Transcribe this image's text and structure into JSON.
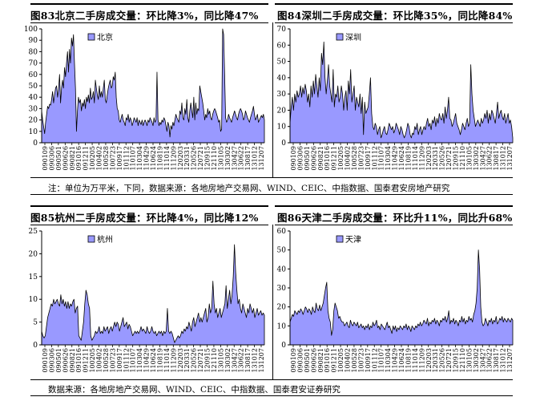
{
  "charts": [
    {
      "title": "图83北京二手房成交量：环比降3%，同比降47%"
    },
    {
      "title": "图84深圳二手房成交量：环比降35%，同比降84%"
    },
    {
      "title": "图85杭州二手房成交量：环比降4%，同比降12%"
    },
    {
      "title": "图86天津二手房成交量：环比升11%，同比升68%"
    }
  ],
  "notes": {
    "top": "注：单位为万平米，下同，数据来源：各地房地产交易网、WIND、CEIC、中指数据、国泰君安房地产研究",
    "bottom": "数据来源：各地房地产交易网、WIND、CEIC、中指数据、国泰君安证券研究"
  },
  "chart_data": [
    {
      "type": "area",
      "series": [
        {
          "name": "北京",
          "values": [
            28,
            20,
            14,
            8,
            18,
            25,
            32,
            30,
            34,
            33,
            38,
            45,
            35,
            42,
            48,
            50,
            40,
            47,
            60,
            35,
            48,
            55,
            48,
            66,
            58,
            70,
            80,
            62,
            82,
            70,
            92,
            85,
            95,
            70,
            48,
            10,
            28,
            40,
            35,
            38,
            28,
            35,
            32,
            38,
            30,
            40,
            36,
            42,
            35,
            48,
            38,
            40,
            45,
            35,
            55,
            48,
            42,
            38,
            50,
            40,
            45,
            40,
            48,
            55,
            38,
            35,
            42,
            48,
            52,
            55,
            48,
            50,
            58,
            55,
            62,
            40,
            30,
            28,
            20,
            18,
            22,
            25,
            20,
            18,
            15,
            22,
            20,
            25,
            18,
            22,
            20,
            15,
            18,
            22,
            20,
            18,
            22,
            15,
            20,
            18,
            16,
            20,
            15,
            18,
            20,
            18,
            15,
            20,
            18,
            22,
            20,
            18,
            15,
            22,
            18,
            20,
            62,
            20,
            15,
            18,
            16,
            20,
            18,
            22,
            20,
            15,
            10,
            18,
            15,
            5,
            15,
            12,
            18,
            15,
            20,
            25,
            22,
            20,
            18,
            28,
            25,
            35,
            22,
            20,
            30,
            25,
            38,
            22,
            18,
            28,
            35,
            28,
            22,
            40,
            20,
            35,
            25,
            30,
            28,
            50,
            45,
            40,
            35,
            28,
            20,
            25,
            22,
            30,
            25,
            28,
            22,
            20,
            25,
            28,
            30,
            28,
            25,
            22,
            18,
            20,
            10,
            12,
            100,
            95,
            60,
            22,
            18,
            20,
            25,
            22,
            20,
            18,
            22,
            25,
            28,
            25,
            22,
            20,
            25,
            28,
            30,
            28,
            25,
            20,
            22,
            28,
            25,
            22,
            20,
            18,
            22,
            25,
            28,
            32,
            25,
            20,
            22,
            25,
            18,
            20,
            22,
            24,
            22,
            25,
            20
          ]
        }
      ],
      "x_ticks": [
        "090109",
        "090306",
        "090501",
        "090626",
        "090821",
        "091016",
        "091211",
        "100205",
        "100402",
        "100528",
        "100723",
        "100917",
        "101112",
        "110107",
        "110304",
        "110429",
        "110624",
        "110819",
        "111014",
        "111209",
        "120203",
        "120331",
        "120526",
        "120721",
        "120915",
        "121110",
        "130105",
        "130302",
        "130427",
        "130622",
        "130817",
        "131012",
        "131207"
      ],
      "ylim": [
        0,
        100
      ],
      "y_ticks": [
        0,
        10,
        20,
        30,
        40,
        50,
        60,
        70,
        80,
        90,
        100
      ],
      "legend": "北京",
      "color": "#9999ff"
    },
    {
      "type": "area",
      "series": [
        {
          "name": "深圳",
          "values": [
            12,
            22,
            28,
            20,
            30,
            25,
            32,
            28,
            30,
            35,
            28,
            34,
            30,
            36,
            32,
            25,
            30,
            22,
            35,
            28,
            38,
            30,
            42,
            35,
            28,
            40,
            32,
            55,
            48,
            62,
            40,
            30,
            38,
            48,
            35,
            30,
            25,
            45,
            22,
            30,
            28,
            35,
            25,
            28,
            35,
            30,
            20,
            28,
            32,
            20,
            38,
            30,
            45,
            25,
            30,
            35,
            20,
            28,
            25,
            22,
            30,
            18,
            28,
            5,
            25,
            18,
            20,
            22,
            30,
            40,
            18,
            10,
            8,
            12,
            10,
            5,
            8,
            10,
            3,
            5,
            8,
            10,
            6,
            5,
            8,
            12,
            10,
            8,
            10,
            6,
            8,
            12,
            10,
            8,
            5,
            10,
            8,
            5,
            3,
            5,
            8,
            12,
            10,
            5,
            3,
            6,
            5,
            10,
            8,
            12,
            5,
            8,
            10,
            5,
            8,
            10,
            8,
            12,
            15,
            10,
            12,
            8,
            14,
            12,
            16,
            10,
            15,
            12,
            18,
            15,
            14,
            18,
            12,
            22,
            15,
            20,
            28,
            15,
            14,
            10,
            12,
            15,
            18,
            12,
            10,
            8,
            5,
            8,
            12,
            10,
            8,
            12,
            15,
            10,
            12,
            48,
            30,
            20,
            15,
            10,
            12,
            14,
            12,
            10,
            15,
            12,
            14,
            18,
            15,
            20,
            12,
            18,
            14,
            20,
            18,
            15,
            12,
            18,
            25,
            15,
            18,
            20,
            16,
            14,
            18,
            12,
            15,
            18,
            12,
            14,
            10,
            3
          ]
        }
      ],
      "x_ticks": [
        "090109",
        "090306",
        "090501",
        "090626",
        "090821",
        "091016",
        "091211",
        "100205",
        "100402",
        "100528",
        "100723",
        "100917",
        "101112",
        "110107",
        "110304",
        "110429",
        "110624",
        "110819",
        "111014",
        "111209",
        "120203",
        "120331",
        "120526",
        "120721",
        "120915",
        "121110",
        "130105",
        "130302",
        "130427",
        "130622",
        "130817",
        "131012",
        "131207"
      ],
      "ylim": [
        0,
        70
      ],
      "y_ticks": [
        0,
        10,
        20,
        30,
        40,
        50,
        60,
        70
      ],
      "legend": "深圳",
      "color": "#9999ff"
    },
    {
      "type": "area",
      "series": [
        {
          "name": "杭州",
          "values": [
            3,
            2,
            1.5,
            2,
            4,
            6,
            7,
            8,
            9,
            8.5,
            10,
            9,
            9.5,
            10,
            9,
            8.5,
            11,
            9,
            10,
            8.5,
            9.5,
            8,
            9.5,
            8,
            9,
            8.5,
            9.5,
            10,
            7,
            8,
            8.5,
            2,
            1.5,
            1,
            3,
            5,
            9,
            12,
            11,
            9,
            8,
            2,
            1,
            1.5,
            2,
            3,
            2.5,
            3,
            4,
            2.5,
            3,
            2.5,
            4,
            3,
            3.5,
            4,
            2.5,
            3.5,
            4,
            3,
            4,
            5,
            4,
            5,
            4.5,
            3,
            4,
            5,
            6,
            4,
            4.5,
            5,
            3.5,
            4.5,
            4,
            3,
            2,
            2.5,
            3,
            2.5,
            3,
            2.5,
            3,
            4,
            3,
            3.5,
            3,
            2.5,
            4,
            3,
            2.5,
            3,
            4,
            3,
            2.5,
            3,
            2,
            2.5,
            3,
            2.5,
            3,
            2,
            3,
            2.5,
            3,
            8,
            3,
            2.5,
            3,
            2.5,
            1.5,
            0.5,
            1,
            1.5,
            2,
            1.5,
            2,
            3,
            2.5,
            3.5,
            3,
            4,
            3.5,
            5,
            4,
            3,
            5,
            6,
            4,
            5,
            6,
            7,
            5,
            6,
            5,
            6,
            7,
            8,
            5,
            6,
            9,
            7,
            8,
            14,
            9,
            7,
            8,
            6,
            7,
            8,
            6,
            7,
            8,
            9,
            13,
            8,
            10,
            12,
            9,
            11,
            15,
            22,
            16,
            12,
            9,
            10,
            8,
            7,
            9,
            8,
            7,
            6,
            8,
            7,
            9,
            8,
            7,
            8,
            6,
            7,
            8,
            6.5,
            7,
            7.5,
            6.5,
            7,
            6.5
          ]
        }
      ],
      "x_ticks": [
        "090109",
        "090306",
        "090501",
        "090626",
        "090821",
        "091016",
        "091211",
        "100205",
        "100402",
        "100528",
        "100723",
        "100917",
        "101112",
        "110107",
        "110304",
        "110429",
        "110624",
        "110819",
        "111014",
        "111209",
        "120203",
        "120331",
        "120526",
        "120721",
        "120915",
        "121110",
        "130105",
        "130302",
        "130427",
        "130622",
        "130817",
        "131012",
        "131207"
      ],
      "ylim": [
        0,
        25
      ],
      "y_ticks": [
        0,
        5,
        10,
        15,
        20,
        25
      ],
      "legend": "杭州",
      "color": "#9999ff"
    },
    {
      "type": "area",
      "series": [
        {
          "name": "天津",
          "values": [
            12,
            14,
            16,
            15,
            18,
            17,
            16,
            18,
            17,
            19,
            18,
            16,
            18,
            20,
            19,
            17,
            19,
            18,
            16,
            20,
            18,
            17,
            22,
            19,
            18,
            21,
            18,
            20,
            22,
            26,
            30,
            33,
            18,
            14,
            12,
            5,
            8,
            18,
            22,
            20,
            18,
            14,
            15,
            13,
            12,
            12,
            10,
            11,
            12,
            10,
            9,
            13,
            11,
            10,
            12,
            11,
            10,
            12,
            9,
            10,
            11,
            9,
            10,
            8,
            10,
            9,
            11,
            8,
            10,
            9,
            12,
            10,
            11,
            13,
            9,
            10,
            8,
            11,
            10,
            9,
            8,
            10,
            12,
            9,
            10,
            8,
            6,
            10,
            8,
            10,
            7,
            9,
            8,
            10,
            9,
            8,
            10,
            9,
            11,
            8,
            10,
            9,
            7,
            10,
            9,
            8,
            10,
            9,
            11,
            10,
            12,
            10,
            11,
            13,
            12,
            11,
            14,
            10,
            12,
            11,
            13,
            12,
            14,
            11,
            13,
            12,
            10,
            13,
            12,
            14,
            13,
            15,
            12,
            14,
            18,
            11,
            13,
            12,
            14,
            11,
            13,
            12,
            10,
            13,
            12,
            15,
            12,
            14,
            11,
            13,
            12,
            15,
            13,
            14,
            12,
            16,
            18,
            22,
            30,
            50,
            40,
            20,
            12,
            10,
            11,
            14,
            12,
            10,
            13,
            12,
            14,
            11,
            13,
            12,
            15,
            11,
            12,
            14,
            13,
            15,
            12,
            14,
            13,
            12,
            14,
            13,
            12,
            14,
            13
          ]
        }
      ],
      "x_ticks": [
        "090109",
        "090306",
        "090501",
        "090626",
        "090821",
        "091016",
        "091211",
        "100205",
        "100402",
        "100528",
        "100723",
        "100917",
        "101112",
        "110107",
        "110304",
        "110429",
        "110624",
        "110819",
        "111014",
        "111209",
        "120203",
        "120331",
        "120526",
        "120721",
        "120915",
        "121110",
        "130105",
        "130302",
        "130427",
        "130622",
        "130817",
        "131012",
        "131207"
      ],
      "ylim": [
        0,
        60
      ],
      "y_ticks": [
        0,
        10,
        20,
        30,
        40,
        50,
        60
      ],
      "legend": "天津",
      "color": "#9999ff"
    }
  ]
}
